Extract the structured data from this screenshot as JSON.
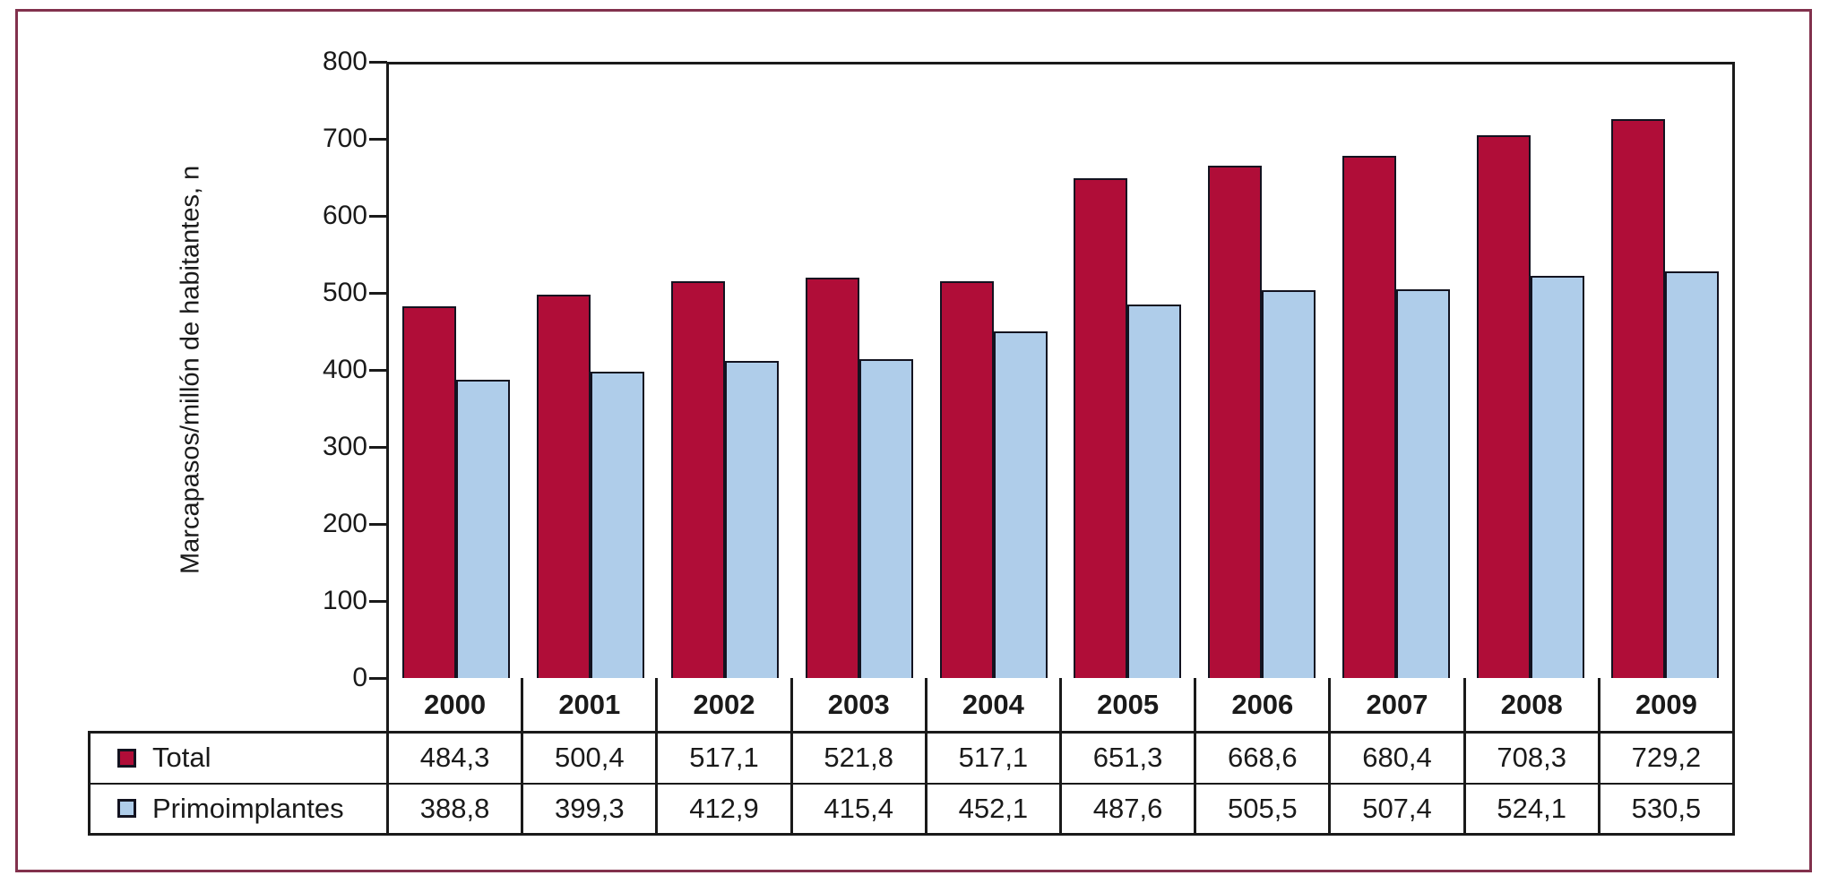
{
  "chart_data": {
    "type": "bar",
    "title": "",
    "xlabel": "",
    "ylabel": "Marcapasos/millón de habitantes, n",
    "ylim": [
      0,
      800
    ],
    "yticks": [
      0,
      100,
      200,
      300,
      400,
      500,
      600,
      700,
      800
    ],
    "grid": false,
    "legend_position": "table-row-headers-bottom-left",
    "categories": [
      "2000",
      "2001",
      "2002",
      "2003",
      "2004",
      "2005",
      "2006",
      "2007",
      "2008",
      "2009"
    ],
    "series": [
      {
        "name": "Total",
        "color": "#B00D38",
        "values": [
          484.3,
          500.4,
          517.1,
          521.8,
          517.1,
          651.3,
          668.6,
          680.4,
          708.3,
          729.2
        ]
      },
      {
        "name": "Primoimplantes",
        "color": "#AFCDEA",
        "values": [
          388.8,
          399.3,
          412.9,
          415.4,
          452.1,
          487.6,
          505.5,
          507.4,
          524.1,
          530.5
        ]
      }
    ]
  },
  "table": {
    "rows": [
      {
        "label": "Total",
        "swatch_color": "#B00D38",
        "values": [
          "484,3",
          "500,4",
          "517,1",
          "521,8",
          "517,1",
          "651,3",
          "668,6",
          "680,4",
          "708,3",
          "729,2"
        ]
      },
      {
        "label": "Primoimplantes",
        "swatch_color": "#AFCDEA",
        "values": [
          "388,8",
          "399,3",
          "412,9",
          "415,4",
          "452,1",
          "487,6",
          "505,5",
          "507,4",
          "524,1",
          "530,5"
        ]
      }
    ]
  },
  "colors": {
    "frame": "#82314D",
    "axis": "#1A1A1A",
    "text": "#1A1A1A",
    "bar_border": "#131320",
    "background": "#FFFFFF"
  }
}
